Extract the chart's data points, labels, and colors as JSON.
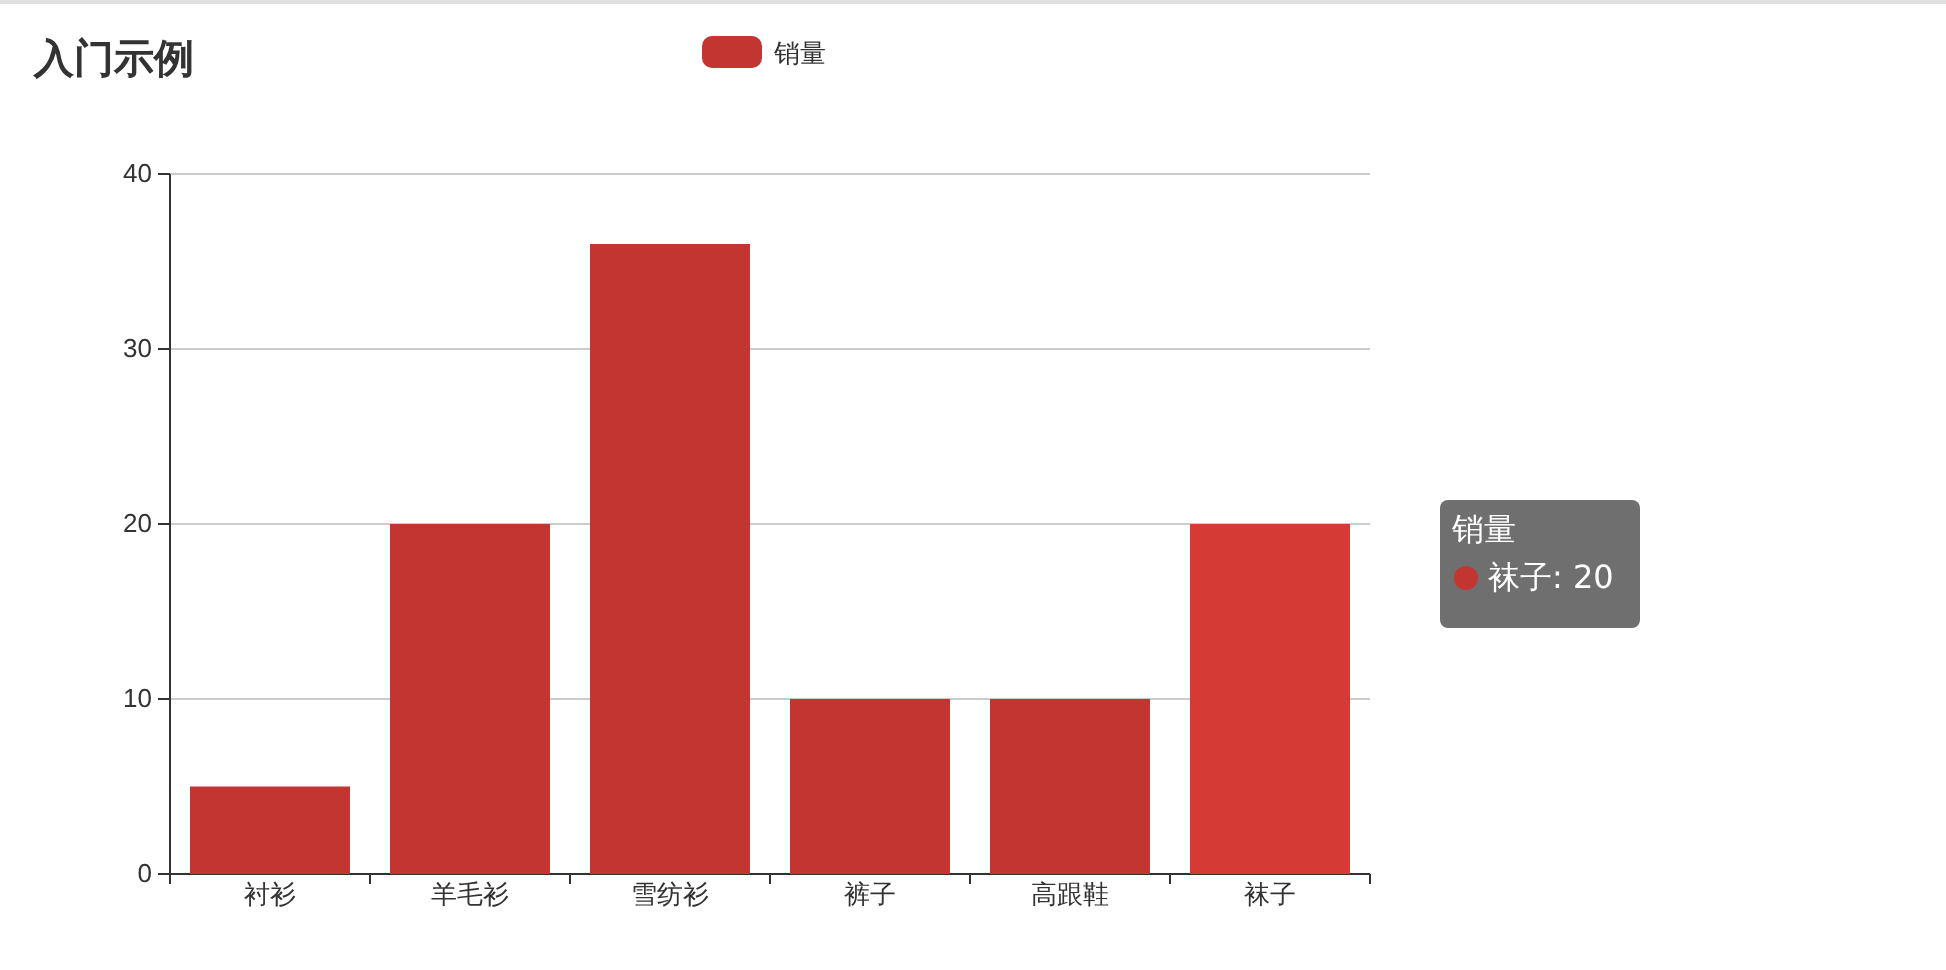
{
  "chart_data": {
    "type": "bar",
    "title": "入门示例",
    "categories": [
      "衬衫",
      "羊毛衫",
      "雪纺衫",
      "裤子",
      "高跟鞋",
      "袜子"
    ],
    "series": [
      {
        "name": "销量",
        "color": "#c23531",
        "colors": [
          "#c23531",
          "#c23531",
          "#c23531",
          "#c23531",
          "#c23531",
          "#d63a35"
        ],
        "values": [
          5,
          20,
          36,
          10,
          10,
          20
        ]
      }
    ],
    "ylim": [
      0,
      40
    ],
    "yticks": [
      0,
      10,
      20,
      30,
      40
    ],
    "grid": "y",
    "legend": "top",
    "annotations": [
      "销量",
      "袜子: 20"
    ]
  }
}
